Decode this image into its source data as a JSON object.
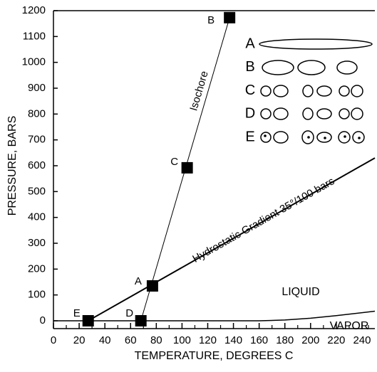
{
  "chart_data": {
    "type": "scatter",
    "x_label": "TEMPERATURE,  DEGREES C",
    "y_label": "PRESSURE,  BARS",
    "xlim": [
      0,
      250
    ],
    "ylim": [
      0,
      1200
    ],
    "xticks": [
      0,
      20,
      40,
      60,
      80,
      100,
      120,
      140,
      160,
      180,
      200,
      220,
      240
    ],
    "yticks": [
      0,
      100,
      200,
      300,
      400,
      500,
      600,
      700,
      800,
      900,
      1000,
      1100,
      1200
    ],
    "points": {
      "labels": [
        "E",
        "D",
        "A",
        "C",
        "B"
      ],
      "x": [
        27,
        68,
        77,
        104,
        137
      ],
      "y": [
        0,
        0,
        135,
        592,
        1173
      ]
    },
    "lines": [
      {
        "label": "Isochore",
        "x": [
          68,
          137
        ],
        "y": [
          0,
          1173
        ]
      },
      {
        "label": "Hydrostatic Gradient 35°/100  bars",
        "x": [
          27,
          250
        ],
        "y": [
          0,
          630
        ]
      }
    ],
    "curve": {
      "x": [
        0,
        100,
        160,
        180,
        200,
        220,
        250
      ],
      "y": [
        0,
        0,
        0,
        3,
        10,
        20,
        37
      ]
    },
    "regions": [
      "LIQUID",
      "VAPOR"
    ],
    "legend_labels": [
      "A",
      "B",
      "C",
      "D",
      "E"
    ]
  }
}
